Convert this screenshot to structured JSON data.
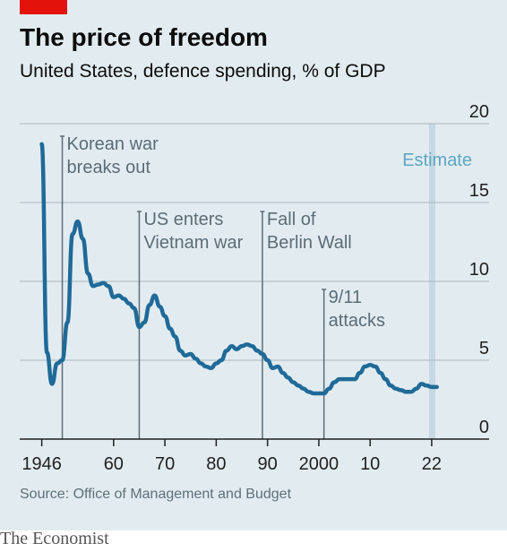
{
  "header": {
    "title": "The price of freedom",
    "subtitle": "United States, defence spending, % of GDP"
  },
  "footer": {
    "source": "Source: Office of Management and Budget",
    "brand": "The Economist"
  },
  "colors": {
    "background": "#e2ecf0",
    "line": "#1f6a98",
    "accent": "#e3120b",
    "estimate_band": "#c5d8e3",
    "annotation": "#5c6c76"
  },
  "chart_data": {
    "type": "line",
    "title": "The price of freedom",
    "subtitle": "United States, defence spending, % of GDP",
    "xlabel": "",
    "ylabel": "",
    "xlim": [
      1946,
      2023
    ],
    "ylim": [
      0,
      20
    ],
    "x_ticks": [
      1946,
      1960,
      1970,
      1980,
      1990,
      2000,
      2010,
      2022
    ],
    "x_tick_labels": [
      "1946",
      "60",
      "70",
      "80",
      "90",
      "2000",
      "10",
      "22"
    ],
    "y_ticks": [
      0,
      5,
      10,
      15,
      20
    ],
    "y_axis_position": "right",
    "grid": "horizontal",
    "series": [
      {
        "x": [
          1946,
          1947,
          1948,
          1949,
          1950,
          1951,
          1952,
          1953,
          1954,
          1955,
          1956,
          1957,
          1958,
          1959,
          1960,
          1961,
          1962,
          1963,
          1964,
          1965,
          1966,
          1967,
          1968,
          1969,
          1970,
          1971,
          1972,
          1973,
          1974,
          1975,
          1976,
          1977,
          1978,
          1979,
          1980,
          1981,
          1982,
          1983,
          1984,
          1985,
          1986,
          1987,
          1988,
          1989,
          1990,
          1991,
          1992,
          1993,
          1994,
          1995,
          1996,
          1997,
          1998,
          1999,
          2000,
          2001,
          2002,
          2003,
          2004,
          2005,
          2006,
          2007,
          2008,
          2009,
          2010,
          2011,
          2012,
          2013,
          2014,
          2015,
          2016,
          2017,
          2018,
          2019,
          2020,
          2021,
          2022,
          2023
        ],
        "y": [
          18.7,
          5.5,
          3.5,
          4.8,
          5.0,
          7.4,
          13.0,
          13.8,
          12.7,
          10.5,
          9.7,
          9.8,
          9.9,
          9.7,
          9.0,
          9.1,
          8.9,
          8.6,
          8.3,
          7.1,
          7.4,
          8.5,
          9.1,
          8.4,
          7.8,
          7.0,
          6.5,
          5.6,
          5.3,
          5.4,
          5.1,
          4.8,
          4.6,
          4.5,
          4.8,
          5.0,
          5.6,
          5.9,
          5.7,
          5.9,
          6.0,
          5.9,
          5.6,
          5.4,
          5.0,
          4.5,
          4.6,
          4.2,
          3.9,
          3.6,
          3.4,
          3.2,
          3.0,
          2.9,
          2.9,
          2.9,
          3.2,
          3.6,
          3.8,
          3.8,
          3.8,
          3.8,
          4.2,
          4.6,
          4.7,
          4.6,
          4.2,
          3.8,
          3.4,
          3.2,
          3.1,
          3.0,
          3.0,
          3.2,
          3.5,
          3.4,
          3.3,
          3.3
        ]
      }
    ],
    "estimate_from": 2022,
    "estimate_label": "Estimate",
    "annotations": [
      {
        "x": 1950,
        "lines": [
          "Korean war",
          "breaks out"
        ]
      },
      {
        "x": 1965,
        "lines": [
          "US enters",
          "Vietnam war"
        ]
      },
      {
        "x": 1989,
        "lines": [
          "Fall of",
          "Berlin Wall"
        ]
      },
      {
        "x": 2001,
        "lines": [
          "9/11",
          "attacks"
        ]
      }
    ]
  }
}
